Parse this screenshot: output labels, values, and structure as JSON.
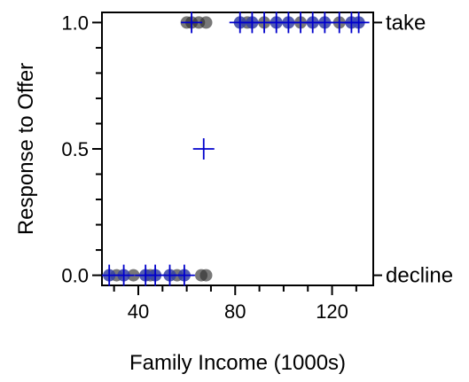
{
  "chart_data": {
    "type": "scatter",
    "title": "",
    "xlabel": "Family Income (1000s)",
    "ylabel": "Response to Offer",
    "xlim": [
      25,
      137
    ],
    "ylim": [
      -0.04,
      1.04
    ],
    "x_ticks": [
      40,
      80,
      120
    ],
    "x_tick_labels": [
      "40",
      "80",
      "120"
    ],
    "x_minor_ticks": [
      30,
      50,
      60,
      70,
      90,
      100,
      110,
      130
    ],
    "y_ticks": [
      0.0,
      0.5,
      1.0
    ],
    "y_tick_labels": [
      "0.0",
      "0.5",
      "1.0"
    ],
    "y_minor_ticks": [
      0.1,
      0.2,
      0.3,
      0.4,
      0.6,
      0.7,
      0.8,
      0.9
    ],
    "right_axis_labels": [
      {
        "y": 1.0,
        "label": "take"
      },
      {
        "y": 0.0,
        "label": "decline"
      }
    ],
    "grid": false,
    "legend": "none",
    "series": [
      {
        "role": "observed",
        "marker": "circle",
        "color": "#2f2f2f",
        "points": [
          [
            28,
            0
          ],
          [
            31,
            0
          ],
          [
            34,
            0
          ],
          [
            38,
            0
          ],
          [
            43,
            0
          ],
          [
            45,
            0
          ],
          [
            47,
            0
          ],
          [
            53,
            0
          ],
          [
            56,
            0
          ],
          [
            59,
            0
          ],
          [
            66,
            0
          ],
          [
            68,
            0
          ],
          [
            60,
            1
          ],
          [
            62,
            1
          ],
          [
            65,
            1
          ],
          [
            68,
            1
          ],
          [
            82,
            1
          ],
          [
            85,
            1
          ],
          [
            87,
            1
          ],
          [
            92,
            1
          ],
          [
            97,
            1
          ],
          [
            102,
            1
          ],
          [
            107,
            1
          ],
          [
            112,
            1
          ],
          [
            117,
            1
          ],
          [
            123,
            1
          ],
          [
            128,
            1
          ],
          [
            131,
            1
          ]
        ]
      },
      {
        "role": "fitted",
        "marker": "circle",
        "color": "#3b4bd6",
        "points": [
          [
            28,
            0
          ],
          [
            34,
            0
          ],
          [
            43,
            0
          ],
          [
            47,
            0
          ],
          [
            53,
            0
          ],
          [
            59,
            0
          ],
          [
            82,
            1
          ],
          [
            87,
            1
          ],
          [
            97,
            1
          ],
          [
            102,
            1
          ],
          [
            112,
            1
          ],
          [
            117,
            1
          ],
          [
            128,
            1
          ],
          [
            131,
            1
          ]
        ]
      },
      {
        "role": "group-marker",
        "marker": "plus",
        "color": "#0000cc",
        "points": [
          [
            28,
            0
          ],
          [
            34,
            0
          ],
          [
            43,
            0
          ],
          [
            47,
            0
          ],
          [
            53,
            0
          ],
          [
            59,
            0
          ],
          [
            62,
            1
          ],
          [
            82,
            1
          ],
          [
            87,
            1
          ],
          [
            92,
            1
          ],
          [
            97,
            1
          ],
          [
            102,
            1
          ],
          [
            107,
            1
          ],
          [
            112,
            1
          ],
          [
            117,
            1
          ],
          [
            123,
            1
          ],
          [
            128,
            1
          ],
          [
            131,
            1
          ],
          [
            67,
            0.5
          ]
        ]
      }
    ]
  }
}
